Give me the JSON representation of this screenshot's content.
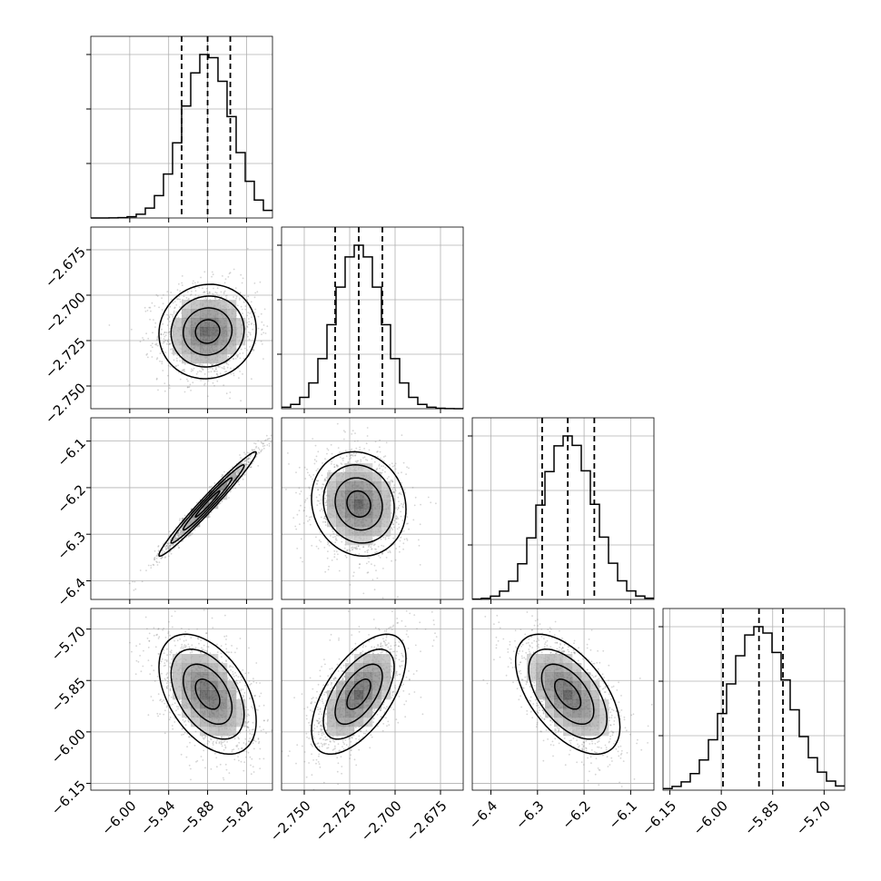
{
  "chart_data": {
    "type": "corner",
    "parameters": [
      {
        "range": [
          -6.06,
          -5.78
        ],
        "mean": -5.88,
        "q16": -5.92,
        "q84": -5.845,
        "ticks": [
          -6.0,
          -5.94,
          -5.88,
          -5.82
        ],
        "tick_labels": [
          "−6.00",
          "−5.94",
          "−5.88",
          "−5.82"
        ]
      },
      {
        "range": [
          -2.7625,
          -2.6625
        ],
        "mean": -2.72,
        "q16": -2.733,
        "q84": -2.707,
        "ticks": [
          -2.75,
          -2.725,
          -2.7,
          -2.675
        ],
        "tick_labels": [
          "−2.750",
          "−2.725",
          "−2.700",
          "−2.675"
        ]
      },
      {
        "range": [
          -6.44,
          -6.05
        ],
        "mean": -6.235,
        "q16": -6.29,
        "q84": -6.178,
        "ticks": [
          -6.4,
          -6.3,
          -6.2,
          -6.1
        ],
        "tick_labels": [
          "−6.4",
          "−6.3",
          "−6.2",
          "−6.1"
        ]
      },
      {
        "range": [
          -6.17,
          -5.64
        ],
        "mean": -5.89,
        "q16": -5.995,
        "q84": -5.82,
        "ticks": [
          -6.15,
          -6.0,
          -5.85,
          -5.7
        ],
        "tick_labels": [
          "−6.15",
          "−6.00",
          "−5.85",
          "−5.70"
        ]
      }
    ],
    "correlations": [
      [
        1.0,
        0.05,
        0.98,
        -0.45
      ],
      [
        0.05,
        1.0,
        -0.1,
        0.6
      ],
      [
        0.98,
        -0.1,
        1.0,
        -0.55
      ],
      [
        -0.45,
        0.6,
        -0.55,
        1.0
      ]
    ],
    "contour_sigma_levels": [
      0.5,
      1.0,
      1.5,
      2.0
    ],
    "grid": true,
    "colors": {
      "marks": "#000000",
      "points": "#888888",
      "grid": "#b0b0b0"
    }
  }
}
